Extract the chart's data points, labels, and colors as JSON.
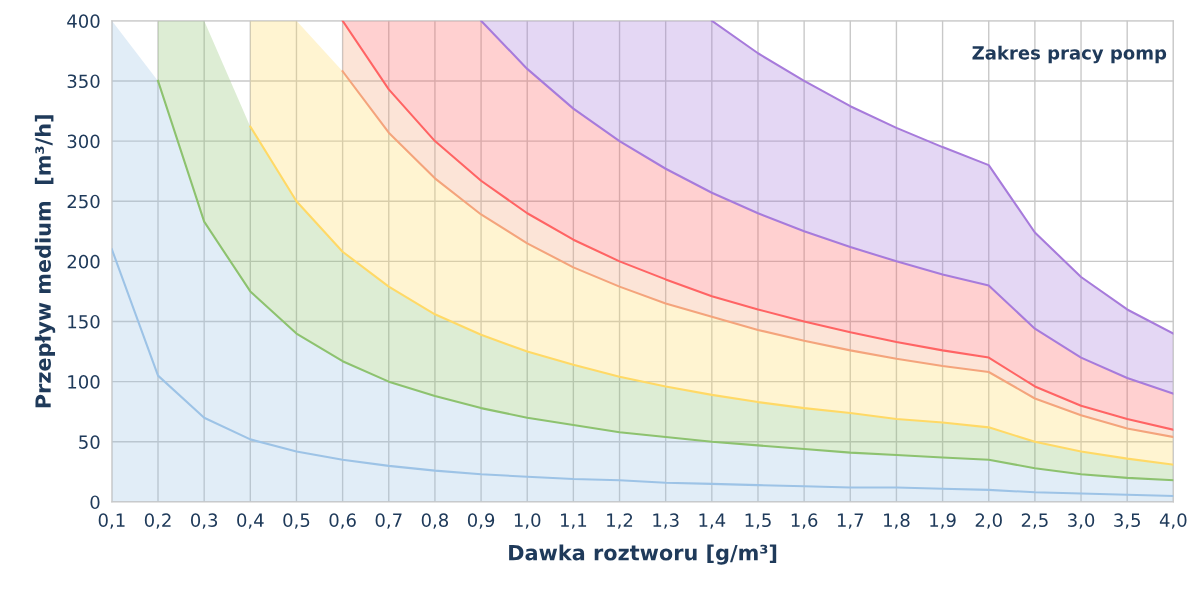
{
  "chart_data": {
    "type": "line",
    "xlabel": "Dawka roztworu [g/m³]",
    "ylabel": "Przepływ medium  [m³/h]",
    "annotations": [
      "Zakres pracy pomp"
    ],
    "categories": [
      "0,1",
      "0,2",
      "0,3",
      "0,4",
      "0,5",
      "0,6",
      "0,7",
      "0,8",
      "0,9",
      "1,0",
      "1,1",
      "1,2",
      "1,3",
      "1,4",
      "1,5",
      "1,6",
      "1,7",
      "1,8",
      "1,9",
      "2,0",
      "2,5",
      "3,0",
      "3,5",
      "4,0"
    ],
    "series": [
      {
        "color": "#9dc3e6",
        "values": [
          210,
          105,
          70,
          52,
          42,
          35,
          30,
          26,
          23,
          21,
          19,
          18,
          16,
          15,
          14,
          13,
          12,
          12,
          11,
          10,
          8,
          7,
          6,
          5
        ],
        "lower": [
          0,
          0,
          0,
          0,
          0,
          0,
          0,
          0,
          0,
          0,
          0,
          0,
          0,
          0,
          0,
          0,
          0,
          0,
          0,
          0,
          0,
          0,
          0,
          0
        ],
        "upper": [
          400,
          350,
          233,
          175,
          140,
          117,
          100,
          88,
          78,
          70,
          64,
          58,
          54,
          50,
          47,
          44,
          41,
          39,
          37,
          35,
          28,
          23,
          20,
          18
        ]
      },
      {
        "color": "#8dc26f",
        "values": [
          null,
          350,
          233,
          175,
          140,
          117,
          100,
          88,
          78,
          70,
          64,
          58,
          54,
          50,
          47,
          44,
          41,
          39,
          37,
          35,
          28,
          23,
          20,
          18
        ],
        "lower": [
          null,
          350,
          233,
          175,
          140,
          117,
          100,
          88,
          78,
          70,
          64,
          58,
          54,
          50,
          47,
          44,
          41,
          39,
          37,
          35,
          28,
          23,
          20,
          18
        ],
        "upper": [
          null,
          400,
          400,
          312,
          250,
          208,
          179,
          156,
          139,
          125,
          114,
          104,
          96,
          89,
          83,
          78,
          74,
          69,
          66,
          62,
          50,
          42,
          36,
          31
        ]
      },
      {
        "color": "#ffd966",
        "values": [
          null,
          null,
          null,
          312,
          250,
          208,
          179,
          156,
          139,
          125,
          114,
          104,
          96,
          89,
          83,
          78,
          74,
          69,
          66,
          62,
          50,
          42,
          36,
          31
        ],
        "lower": [
          null,
          null,
          null,
          312,
          250,
          208,
          179,
          156,
          139,
          125,
          114,
          104,
          96,
          89,
          83,
          78,
          74,
          69,
          66,
          62,
          50,
          42,
          36,
          31
        ],
        "upper": [
          null,
          null,
          null,
          400,
          400,
          358,
          307,
          269,
          239,
          215,
          195,
          179,
          165,
          154,
          143,
          134,
          126,
          119,
          113,
          108,
          86,
          72,
          61,
          54
        ]
      },
      {
        "color": "#f4a47c",
        "values": [
          null,
          null,
          null,
          null,
          null,
          358,
          307,
          269,
          239,
          215,
          195,
          179,
          165,
          154,
          143,
          134,
          126,
          119,
          113,
          108,
          86,
          72,
          61,
          54
        ],
        "lower": [
          null,
          null,
          null,
          null,
          null,
          358,
          307,
          269,
          239,
          215,
          195,
          179,
          165,
          154,
          143,
          134,
          126,
          119,
          113,
          108,
          86,
          72,
          61,
          54
        ],
        "upper": [
          null,
          null,
          null,
          null,
          null,
          400,
          343,
          300,
          267,
          240,
          218,
          200,
          185,
          171,
          160,
          150,
          141,
          133,
          126,
          120,
          96,
          80,
          69,
          60
        ]
      },
      {
        "color": "#ff6464",
        "values": [
          null,
          null,
          null,
          null,
          null,
          400,
          343,
          300,
          267,
          240,
          218,
          200,
          185,
          171,
          160,
          150,
          141,
          133,
          126,
          120,
          96,
          80,
          69,
          60
        ],
        "lower": [
          null,
          null,
          null,
          null,
          null,
          400,
          343,
          300,
          267,
          240,
          218,
          200,
          185,
          171,
          160,
          150,
          141,
          133,
          126,
          120,
          96,
          80,
          69,
          60
        ],
        "upper": [
          null,
          null,
          null,
          null,
          null,
          400,
          400,
          400,
          400,
          360,
          327,
          300,
          277,
          257,
          240,
          225,
          212,
          200,
          189,
          180,
          144,
          120,
          103,
          90
        ]
      },
      {
        "color": "#a77bdb",
        "values": [
          null,
          null,
          null,
          null,
          null,
          null,
          null,
          null,
          400,
          360,
          327,
          300,
          277,
          257,
          240,
          225,
          212,
          200,
          189,
          180,
          144,
          120,
          103,
          90
        ],
        "lower": [
          null,
          null,
          null,
          null,
          null,
          null,
          null,
          null,
          400,
          360,
          327,
          300,
          277,
          257,
          240,
          225,
          212,
          200,
          189,
          180,
          144,
          120,
          103,
          90
        ],
        "upper": [
          null,
          null,
          null,
          null,
          null,
          null,
          null,
          null,
          400,
          400,
          400,
          400,
          400,
          400,
          373,
          350,
          329,
          311,
          295,
          280,
          224,
          187,
          160,
          140
        ]
      },
      {
        "color": "#a77bdb",
        "values": [
          null,
          null,
          null,
          null,
          null,
          null,
          null,
          null,
          null,
          null,
          null,
          null,
          null,
          400,
          373,
          350,
          329,
          311,
          295,
          280,
          224,
          187,
          160,
          140
        ]
      }
    ],
    "ylim": [
      0,
      400
    ],
    "yticks": [
      0,
      50,
      100,
      150,
      200,
      250,
      300,
      350,
      400
    ],
    "grid": true,
    "legend": false
  }
}
